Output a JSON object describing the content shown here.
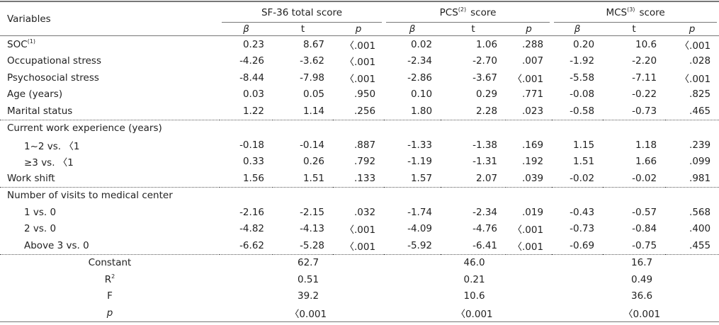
{
  "table": {
    "header": {
      "variables": "Variables",
      "groups": [
        {
          "label": "SF-36 total score"
        },
        {
          "label": "PCS",
          "sup": "(2)",
          "suffix": "score"
        },
        {
          "label": "MCS",
          "sup": "(3)",
          "suffix": "score"
        }
      ],
      "subheaders": [
        "β",
        "t",
        "p",
        "β",
        "t",
        "p",
        "β",
        "t",
        "p"
      ]
    },
    "blocks": [
      {
        "rows": [
          {
            "label": "SOC",
            "sup": "(1)",
            "cells": [
              "0.23",
              "8.67",
              "〈.001",
              "0.02",
              "1.06",
              ".288",
              "0.20",
              "10.6",
              "〈.001"
            ]
          },
          {
            "label": "Occupational stress",
            "cells": [
              "-4.26",
              "-3.62",
              "〈.001",
              "-2.34",
              "-2.70",
              ".007",
              "-1.92",
              "-2.20",
              ".028"
            ]
          },
          {
            "label": "Psychosocial stress",
            "cells": [
              "-8.44",
              "-7.98",
              "〈.001",
              "-2.86",
              "-3.67",
              "〈.001",
              "-5.58",
              "-7.11",
              "〈.001"
            ]
          },
          {
            "label": "Age (years)",
            "cells": [
              "0.03",
              "0.05",
              ".950",
              "0.10",
              "0.29",
              ".771",
              "-0.08",
              "-0.22",
              ".825"
            ]
          },
          {
            "label": "Marital status",
            "cells": [
              "1.22",
              "1.14",
              ".256",
              "1.80",
              "2.28",
              ".023",
              "-0.58",
              "-0.73",
              ".465"
            ]
          }
        ]
      },
      {
        "rows": [
          {
            "label": "Current work experience (years)",
            "subrows": [
              {
                "label": "1~2 vs. 〈1",
                "cells": [
                  "-0.18",
                  "-0.14",
                  ".887",
                  "-1.33",
                  "-1.38",
                  ".169",
                  "1.15",
                  "1.18",
                  ".239"
                ]
              },
              {
                "label": "≥3 vs. 〈1",
                "cells": [
                  "0.33",
                  "0.26",
                  ".792",
                  "-1.19",
                  "-1.31",
                  ".192",
                  "1.51",
                  "1.66",
                  ".099"
                ]
              }
            ]
          },
          {
            "label": "Work shift",
            "cells": [
              "1.56",
              "1.51",
              ".133",
              "1.57",
              "2.07",
              ".039",
              "-0.02",
              "-0.02",
              ".981"
            ]
          }
        ]
      },
      {
        "rows": [
          {
            "label": "Number of visits to medical center",
            "subrows": [
              {
                "label": "1 vs. 0",
                "cells": [
                  "-2.16",
                  "-2.15",
                  ".032",
                  "-1.74",
                  "-2.34",
                  ".019",
                  "-0.43",
                  "-0.57",
                  ".568"
                ]
              },
              {
                "label": "2 vs. 0",
                "cells": [
                  "-4.82",
                  "-4.13",
                  "〈.001",
                  "-4.09",
                  "-4.76",
                  "〈.001",
                  "-0.73",
                  "-0.84",
                  ".400"
                ]
              },
              {
                "label": "Above 3 vs. 0",
                "cells": [
                  "-6.62",
                  "-5.28",
                  "〈.001",
                  "-5.92",
                  "-6.41",
                  "〈.001",
                  "-0.69",
                  "-0.75",
                  ".455"
                ]
              }
            ]
          }
        ]
      }
    ],
    "stats": [
      {
        "label": "Constant",
        "values": [
          "62.7",
          "46.0",
          "16.7"
        ]
      },
      {
        "label": "R",
        "sup": "2",
        "values": [
          "0.51",
          "0.21",
          "0.49"
        ]
      },
      {
        "label": "F",
        "values": [
          "39.2",
          "10.6",
          "36.6"
        ]
      },
      {
        "label": "p",
        "values": [
          "〈0.001",
          "〈0.001",
          "〈0.001"
        ]
      }
    ]
  }
}
